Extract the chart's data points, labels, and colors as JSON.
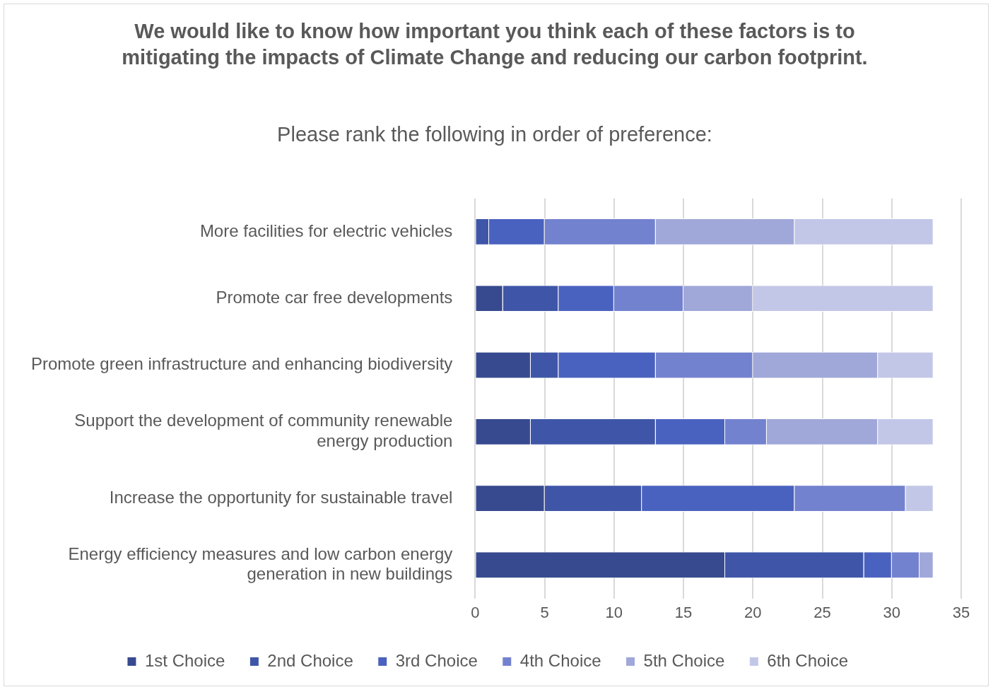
{
  "chart_data": {
    "type": "bar",
    "orientation": "horizontal",
    "stacked": true,
    "title": "We would like to know how important you think each of these factors is to mitigating the impacts of Climate Change and reducing our carbon footprint.",
    "subtitle": "Please rank the following in order of preference:",
    "categories": [
      "More facilities for electric vehicles",
      "Promote car free developments",
      "Promote green infrastructure and enhancing biodiversity",
      "Support the development of community renewable energy production",
      "Increase the opportunity for sustainable travel",
      "Energy efficiency measures and low carbon energy generation in new buildings"
    ],
    "series": [
      {
        "name": "1st Choice",
        "color": "#374a8f",
        "values": [
          0,
          2,
          4,
          4,
          5,
          18
        ]
      },
      {
        "name": "2nd Choice",
        "color": "#3f56a8",
        "values": [
          1,
          4,
          2,
          9,
          7,
          10
        ]
      },
      {
        "name": "3rd Choice",
        "color": "#4a62bf",
        "values": [
          4,
          4,
          7,
          5,
          11,
          2
        ]
      },
      {
        "name": "4th Choice",
        "color": "#7382cf",
        "values": [
          8,
          5,
          7,
          3,
          8,
          2
        ]
      },
      {
        "name": "5th Choice",
        "color": "#a0a8d9",
        "values": [
          10,
          5,
          9,
          8,
          0,
          1
        ]
      },
      {
        "name": "6th Choice",
        "color": "#c3c7e7",
        "values": [
          10,
          13,
          4,
          4,
          2,
          0
        ]
      }
    ],
    "xlim": [
      0,
      35
    ],
    "xticks": [
      0,
      5,
      10,
      15,
      20,
      25,
      30,
      35
    ],
    "grid": "x",
    "legend": "bottom"
  }
}
